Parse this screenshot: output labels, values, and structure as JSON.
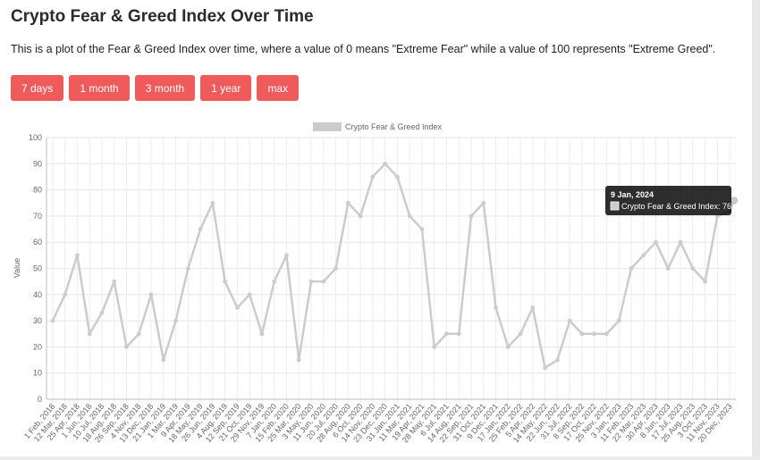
{
  "page": {
    "title": "Crypto Fear & Greed Index Over Time",
    "description": "This is a plot of the Fear & Greed Index over time, where a value of 0 means \"Extreme Fear\" while a value of 100 represents \"Extreme Greed\"."
  },
  "range_buttons": [
    {
      "label": "7 days"
    },
    {
      "label": "1 month"
    },
    {
      "label": "3 month"
    },
    {
      "label": "1 year"
    },
    {
      "label": "max"
    }
  ],
  "tooltip": {
    "date": "9 Jan, 2024",
    "text": "Crypto Fear & Greed Index: 76"
  },
  "colors": {
    "series": "#cccccc",
    "button": "#ef5b5b",
    "grid": "#e6e6e6"
  },
  "chart_data": {
    "type": "line",
    "legend": "top-center",
    "ylabel": "Value",
    "ylim": [
      0,
      100
    ],
    "yticks": [
      0,
      10,
      20,
      30,
      40,
      50,
      60,
      70,
      80,
      90,
      100
    ],
    "series": [
      {
        "name": "Crypto Fear & Greed Index",
        "x": [
          "1 Feb, 2018",
          "12 Mar, 2018",
          "25 Apr, 2018",
          "1 Jun, 2018",
          "10 Jul, 2018",
          "18 Aug, 2018",
          "26 Sep, 2018",
          "4 Nov, 2018",
          "13 Dec, 2018",
          "21 Jan, 2019",
          "1 Mar, 2019",
          "9 Apr, 2019",
          "18 May, 2019",
          "26 Jun, 2019",
          "4 Aug, 2019",
          "12 Sep, 2019",
          "21 Oct, 2019",
          "29 Nov, 2019",
          "7 Jan, 2020",
          "15 Feb, 2020",
          "25 Mar, 2020",
          "3 May, 2020",
          "11 Jun, 2020",
          "20 Jul, 2020",
          "28 Aug, 2020",
          "6 Oct, 2020",
          "14 Nov, 2020",
          "23 Dec, 2020",
          "31 Jan, 2021",
          "11 Mar, 2021",
          "19 Apr, 2021",
          "28 May, 2021",
          "6 Jul, 2021",
          "14 Aug, 2021",
          "22 Sep, 2021",
          "31 Oct, 2021",
          "9 Dec, 2021",
          "17 Jan, 2022",
          "25 Feb, 2022",
          "5 Apr, 2022",
          "14 May, 2022",
          "22 Jun, 2022",
          "31 Jul, 2022",
          "8 Sep, 2022",
          "17 Oct, 2022",
          "25 Nov, 2022",
          "3 Jan, 2023",
          "11 Feb, 2023",
          "22 Mar, 2023",
          "30 Apr, 2023",
          "8 Jun, 2023",
          "17 Jul, 2023",
          "25 Aug, 2023",
          "3 Oct, 2023",
          "11 Nov, 2023",
          "20 Dec, 2023"
        ],
        "values": [
          30,
          40,
          55,
          25,
          33,
          45,
          20,
          25,
          40,
          15,
          30,
          50,
          65,
          75,
          45,
          35,
          40,
          25,
          45,
          55,
          15,
          45,
          45,
          50,
          75,
          70,
          85,
          90,
          85,
          70,
          65,
          20,
          25,
          25,
          70,
          75,
          35,
          20,
          25,
          35,
          12,
          15,
          30,
          25,
          25,
          25,
          30,
          50,
          55,
          60,
          50,
          60,
          50,
          45,
          70,
          72
        ]
      }
    ],
    "xtick_labels": [
      "1 Feb, 2018",
      "12 Mar, 2018",
      "25 Apr, 2018",
      "1 Jun, 2018",
      "10 Jul, 2018",
      "18 Aug, 2018",
      "26 Sep, 2018",
      "4 Nov, 2018",
      "13 Dec, 2018",
      "21 Jan, 2019",
      "1 Mar, 2019",
      "9 Apr, 2019",
      "18 May, 2019",
      "26 Jun, 2019",
      "4 Aug, 2019",
      "12 Sep, 2019",
      "21 Oct, 2019",
      "29 Nov, 2019",
      "7 Jan, 2020",
      "15 Feb, 2020",
      "25 Mar, 2020",
      "3 May, 2020",
      "11 Jun, 2020",
      "20 Jul, 2020",
      "28 Aug, 2020",
      "6 Oct, 2020",
      "14 Nov, 2020",
      "23 Dec, 2020",
      "31 Jan, 2021",
      "11 Mar, 2021",
      "19 Apr, 2021",
      "28 May, 2021",
      "6 Jul, 2021",
      "14 Aug, 2021",
      "22 Sep, 2021",
      "31 Oct, 2021",
      "9 Dec, 2021",
      "17 Jan, 2022",
      "25 Feb, 2022",
      "5 Apr, 2022",
      "14 May, 2022",
      "22 Jun, 2022",
      "31 Jul, 2022",
      "8 Sep, 2022",
      "17 Oct, 2022",
      "25 Nov, 2022",
      "3 Jan, 2023",
      "11 Feb, 2023",
      "22 Mar, 2023",
      "30 Apr, 2023",
      "8 Jun, 2023",
      "17 Jul, 2023",
      "25 Aug, 2023",
      "3 Oct, 2023",
      "11 Nov, 2023",
      "20 Dec, 2023"
    ],
    "highlight": {
      "x": "9 Jan, 2024",
      "value": 76
    }
  }
}
